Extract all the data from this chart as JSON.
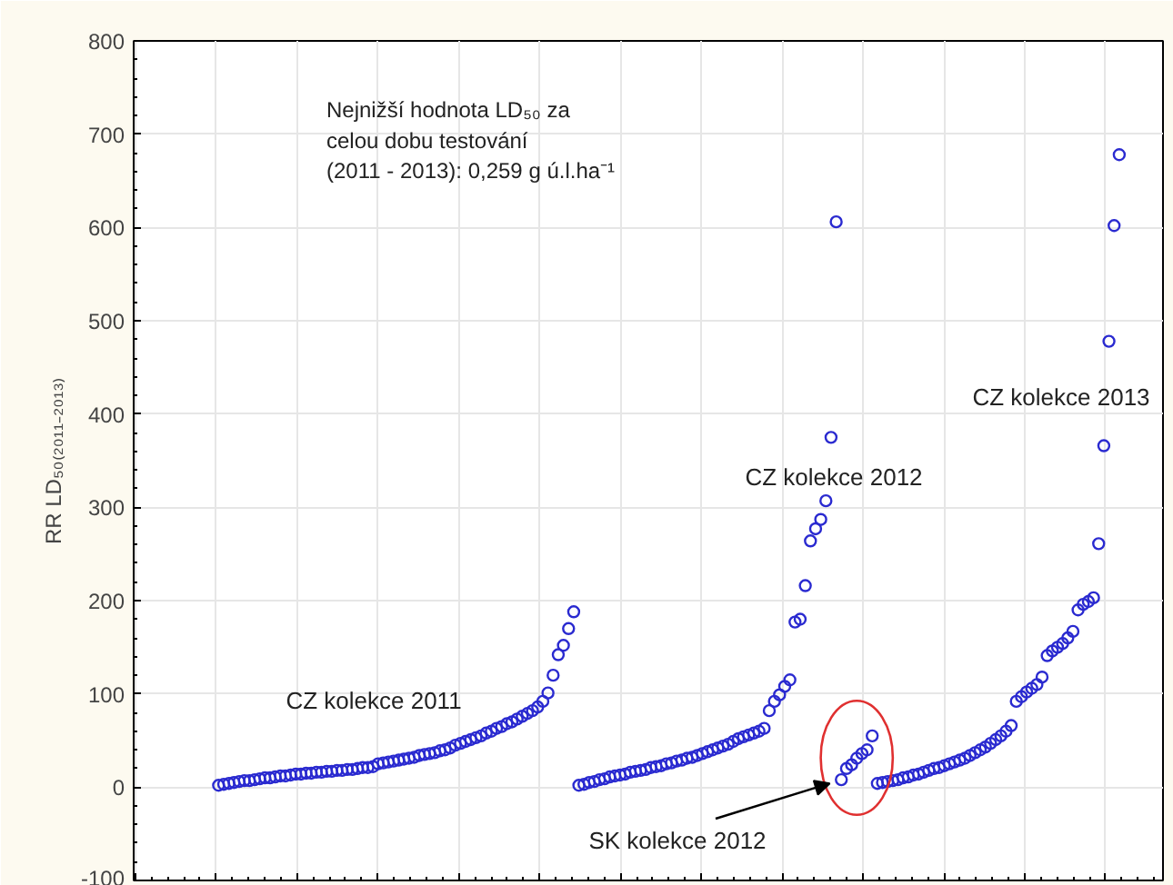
{
  "chart_data": {
    "type": "scatter",
    "ylabel": "RR LD₅₀₍₂₀₁₁₋₂₀₁₃₎",
    "ylim": [
      -100,
      800
    ],
    "yticks": [
      -100,
      0,
      100,
      200,
      300,
      400,
      500,
      600,
      700,
      800
    ],
    "categories": [
      null,
      null,
      null,
      null,
      null,
      null,
      null,
      null,
      null,
      null,
      null,
      null,
      null,
      null,
      null,
      null,
      null,
      null,
      null,
      null,
      null,
      null,
      null,
      null,
      null,
      null,
      null,
      null,
      null,
      null,
      null,
      null,
      null,
      null,
      null,
      null,
      null,
      null,
      null,
      null,
      null,
      null,
      null,
      null,
      null,
      null,
      null,
      null,
      null,
      null,
      null,
      null,
      null,
      null,
      null,
      null,
      null,
      null,
      null,
      null,
      null,
      null,
      null,
      null,
      null,
      null,
      null,
      null,
      null,
      null,
      null,
      null,
      null,
      null,
      null,
      null,
      null,
      null,
      null,
      null,
      null,
      null,
      null,
      null,
      null,
      null,
      null,
      null,
      null,
      null,
      null,
      null,
      null,
      null,
      null,
      null,
      null,
      null,
      null,
      null,
      null,
      null,
      null,
      null,
      null,
      null,
      null,
      null,
      null,
      null,
      null,
      null,
      null,
      null,
      null,
      null,
      null,
      null,
      null,
      null,
      null,
      null,
      null,
      null,
      null,
      null,
      null,
      null,
      null,
      null,
      null,
      null,
      null,
      null,
      null,
      null,
      null,
      null,
      null,
      null,
      null,
      null,
      null,
      null,
      null,
      null,
      null,
      null,
      null,
      null,
      null,
      null,
      null,
      null,
      null,
      null,
      null,
      null,
      null,
      null,
      null,
      null,
      null,
      null,
      null,
      null,
      null,
      null,
      null,
      null,
      null,
      null,
      null,
      null,
      null,
      null,
      null,
      null,
      null,
      null,
      null,
      null,
      null,
      null,
      null,
      null,
      null,
      null,
      null,
      null,
      null,
      null,
      null,
      null,
      null,
      null,
      null,
      null,
      null,
      null
    ],
    "grid": true,
    "marker": "circle",
    "tick_labels": "y",
    "annotations": [
      "Nejnižší hodnota LD₅₀ za\ncelou dobu testování\n(2011 - 2013): 0,259 g ú.l.ha⁻¹",
      "CZ kolekce 2011",
      "CZ kolekce 2012",
      "CZ kolekce 2013",
      "SK kolekce 2012"
    ],
    "series": [
      {
        "color": "#2a2ad0",
        "values": [
          null,
          null,
          null,
          null,
          null,
          null,
          null,
          null,
          null,
          null,
          null,
          null,
          null,
          null,
          null,
          null,
          2,
          3,
          4,
          5,
          6,
          7,
          7,
          8,
          9,
          10,
          10,
          11,
          12,
          12,
          13,
          14,
          14,
          15,
          15,
          16,
          16,
          17,
          17,
          18,
          18,
          19,
          19,
          20,
          21,
          21,
          22,
          25,
          26,
          27,
          28,
          29,
          30,
          31,
          32,
          34,
          35,
          36,
          37,
          39,
          40,
          42,
          45,
          47,
          49,
          51,
          53,
          55,
          58,
          60,
          63,
          65,
          68,
          70,
          73,
          76,
          79,
          82,
          86,
          92,
          101,
          120,
          142,
          152,
          170,
          188,
          null,
          null,
          null,
          null,
          null,
          null,
          null,
          null,
          null,
          null,
          null,
          null,
          null,
          null,
          null,
          null,
          null,
          null,
          null,
          null,
          null,
          null,
          null,
          null,
          null,
          null,
          null,
          null,
          null,
          null,
          null,
          null,
          null,
          null,
          null,
          null,
          null,
          null,
          null,
          null,
          null,
          null,
          null,
          null,
          null,
          null,
          null,
          null,
          null,
          null,
          null,
          null,
          null,
          null,
          null,
          null,
          null,
          null,
          null,
          null,
          null,
          null,
          null,
          null,
          null,
          null,
          null,
          null,
          null,
          null,
          null,
          null,
          null,
          null,
          null,
          null,
          null,
          null,
          null,
          null,
          null,
          null,
          null,
          null,
          null,
          null,
          null,
          null,
          null,
          null,
          null,
          null,
          null,
          null,
          null,
          null,
          null,
          null,
          null,
          null,
          null,
          null,
          null,
          null,
          null,
          null,
          null,
          null,
          null,
          null,
          null,
          null,
          null,
          null
        ]
      },
      {
        "color": "#2a2ad0",
        "values": [
          null,
          null,
          null,
          null,
          null,
          null,
          null,
          null,
          null,
          null,
          null,
          null,
          null,
          null,
          null,
          null,
          null,
          null,
          null,
          null,
          null,
          null,
          null,
          null,
          null,
          null,
          null,
          null,
          null,
          null,
          null,
          null,
          null,
          null,
          null,
          null,
          null,
          null,
          null,
          null,
          null,
          null,
          null,
          null,
          null,
          null,
          null,
          null,
          null,
          null,
          null,
          null,
          null,
          null,
          null,
          null,
          null,
          null,
          null,
          null,
          null,
          null,
          null,
          null,
          null,
          null,
          null,
          null,
          null,
          null,
          null,
          null,
          null,
          null,
          null,
          null,
          null,
          null,
          null,
          null,
          null,
          null,
          null,
          null,
          null,
          null,
          2,
          3,
          5,
          6,
          8,
          9,
          11,
          12,
          13,
          14,
          16,
          17,
          18,
          19,
          21,
          22,
          23,
          25,
          26,
          28,
          29,
          31,
          32,
          34,
          36,
          38,
          40,
          42,
          44,
          46,
          49,
          52,
          54,
          56,
          58,
          60,
          63,
          82,
          92,
          99,
          108,
          115,
          177,
          180,
          216,
          264,
          277,
          287,
          307,
          375,
          606,
          null,
          null,
          null,
          null,
          null,
          null,
          null,
          null,
          null,
          null,
          null,
          null,
          null,
          null,
          null,
          null,
          null,
          null,
          null,
          null,
          null,
          null,
          null,
          null,
          null,
          null,
          null,
          null,
          null,
          null,
          null,
          null,
          null,
          null,
          null,
          null,
          null,
          null,
          null,
          null,
          null,
          null,
          null,
          null,
          null,
          null,
          null,
          null,
          null,
          null,
          null,
          null,
          null,
          null,
          null,
          null,
          null,
          null,
          null,
          null,
          null,
          null,
          null
        ]
      },
      {
        "color": "#2a2ad0",
        "values": [
          null,
          null,
          null,
          null,
          null,
          null,
          null,
          null,
          null,
          null,
          null,
          null,
          null,
          null,
          null,
          null,
          null,
          null,
          null,
          null,
          null,
          null,
          null,
          null,
          null,
          null,
          null,
          null,
          null,
          null,
          null,
          null,
          null,
          null,
          null,
          null,
          null,
          null,
          null,
          null,
          null,
          null,
          null,
          null,
          null,
          null,
          null,
          null,
          null,
          null,
          null,
          null,
          null,
          null,
          null,
          null,
          null,
          null,
          null,
          null,
          null,
          null,
          null,
          null,
          null,
          null,
          null,
          null,
          null,
          null,
          null,
          null,
          null,
          null,
          null,
          null,
          null,
          null,
          null,
          null,
          null,
          null,
          null,
          null,
          null,
          null,
          null,
          null,
          null,
          null,
          null,
          null,
          null,
          null,
          null,
          null,
          null,
          null,
          null,
          null,
          null,
          null,
          null,
          null,
          null,
          null,
          null,
          null,
          null,
          null,
          null,
          null,
          null,
          null,
          null,
          null,
          null,
          null,
          null,
          null,
          null,
          null,
          null,
          null,
          null,
          null,
          null,
          null,
          null,
          null,
          null,
          null,
          null,
          null,
          null,
          null,
          null,
          8,
          20,
          24,
          31,
          36,
          40,
          55,
          null,
          null,
          null,
          null,
          null,
          null,
          null,
          null,
          null,
          null,
          null,
          null,
          null,
          null,
          null,
          null,
          null,
          null,
          null,
          null,
          null,
          null,
          null,
          null,
          null,
          null,
          null,
          null,
          null,
          null,
          null,
          null,
          null,
          null,
          null,
          null,
          null,
          null,
          null,
          null,
          null,
          null,
          null,
          null,
          null,
          null,
          null,
          null,
          null,
          null,
          null,
          null,
          null,
          null,
          null,
          null
        ]
      },
      {
        "color": "#2a2ad0",
        "values": [
          null,
          null,
          null,
          null,
          null,
          null,
          null,
          null,
          null,
          null,
          null,
          null,
          null,
          null,
          null,
          null,
          null,
          null,
          null,
          null,
          null,
          null,
          null,
          null,
          null,
          null,
          null,
          null,
          null,
          null,
          null,
          null,
          null,
          null,
          null,
          null,
          null,
          null,
          null,
          null,
          null,
          null,
          null,
          null,
          null,
          null,
          null,
          null,
          null,
          null,
          null,
          null,
          null,
          null,
          null,
          null,
          null,
          null,
          null,
          null,
          null,
          null,
          null,
          null,
          null,
          null,
          null,
          null,
          null,
          null,
          null,
          null,
          null,
          null,
          null,
          null,
          null,
          null,
          null,
          null,
          null,
          null,
          null,
          null,
          null,
          null,
          null,
          null,
          null,
          null,
          null,
          null,
          null,
          null,
          null,
          null,
          null,
          null,
          null,
          null,
          null,
          null,
          null,
          null,
          null,
          null,
          null,
          null,
          null,
          null,
          null,
          null,
          null,
          null,
          null,
          null,
          null,
          null,
          null,
          null,
          null,
          null,
          null,
          null,
          null,
          null,
          null,
          null,
          null,
          null,
          null,
          null,
          null,
          null,
          null,
          null,
          null,
          null,
          null,
          null,
          null,
          null,
          null,
          null,
          4,
          5,
          6,
          7,
          8,
          10,
          11,
          13,
          14,
          16,
          18,
          20,
          21,
          23,
          25,
          27,
          29,
          31,
          34,
          37,
          40,
          43,
          47,
          51,
          55,
          60,
          66,
          92,
          97,
          102,
          106,
          110,
          118,
          141,
          146,
          150,
          154,
          160,
          167,
          190,
          196,
          199,
          203,
          261,
          366,
          478,
          602,
          678,
          null,
          null,
          null,
          null,
          null,
          null,
          null,
          null
        ]
      }
    ]
  }
}
